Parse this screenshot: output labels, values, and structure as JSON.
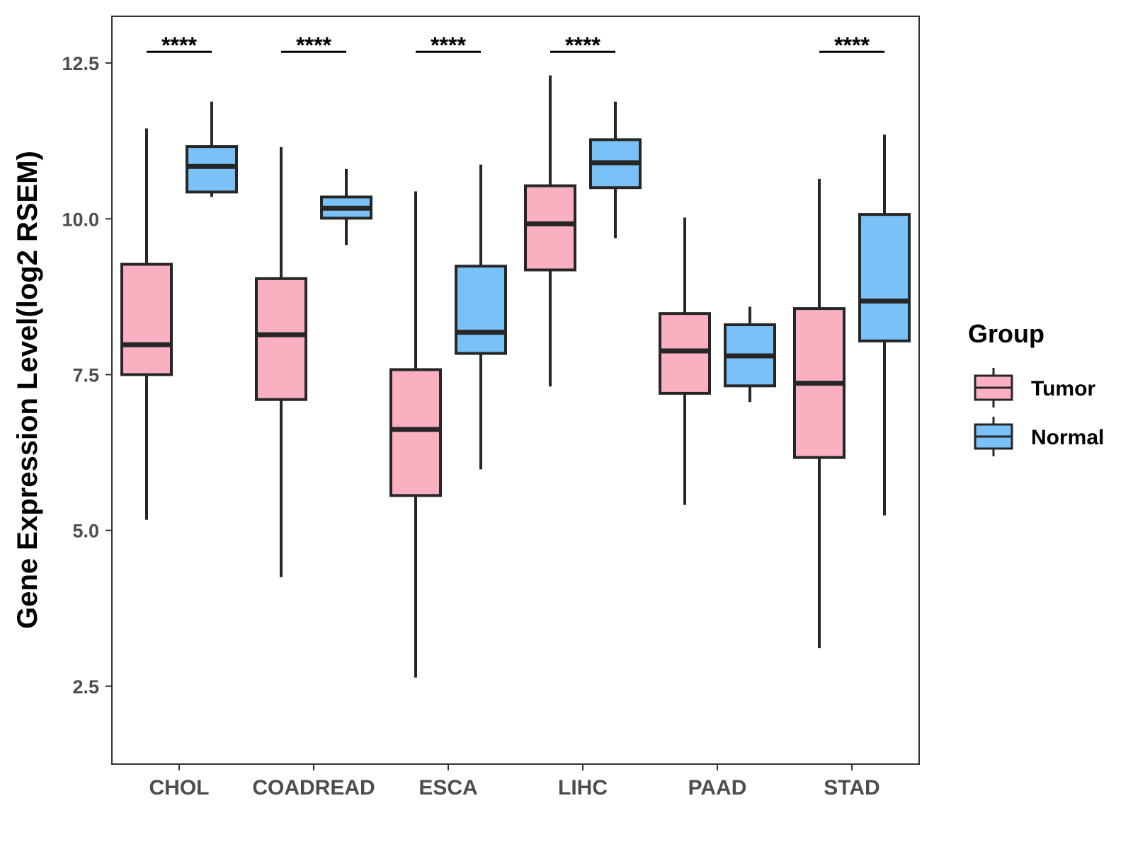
{
  "chart_data": {
    "type": "boxplot",
    "title": "",
    "xlabel": "",
    "ylabel": "Gene Expression Level(log2 RSEM)",
    "ylim": [
      1.25,
      13.25
    ],
    "yticks": [
      2.5,
      5.0,
      7.5,
      10.0,
      12.5
    ],
    "ytick_labels": [
      "2.5",
      "5.0",
      "7.5",
      "10.0",
      "12.5"
    ],
    "categories": [
      "CHOL",
      "COADREAD",
      "ESCA",
      "LIHC",
      "PAAD",
      "STAD"
    ],
    "legend": {
      "title": "Group",
      "position": "right",
      "entries": [
        {
          "name": "Tumor",
          "color": "#fbb0c1"
        },
        {
          "name": "Normal",
          "color": "#79c1f7"
        }
      ]
    },
    "series": [
      {
        "name": "Tumor",
        "color": "#fbb0c1",
        "boxes": [
          {
            "category": "CHOL",
            "whisker_low": 5.17,
            "q1": 7.5,
            "median": 7.98,
            "q3": 9.27,
            "whisker_high": 11.45
          },
          {
            "category": "COADREAD",
            "whisker_low": 4.25,
            "q1": 7.1,
            "median": 8.14,
            "q3": 9.04,
            "whisker_high": 11.15
          },
          {
            "category": "ESCA",
            "whisker_low": 2.64,
            "q1": 5.56,
            "median": 6.62,
            "q3": 7.58,
            "whisker_high": 10.44
          },
          {
            "category": "LIHC",
            "whisker_low": 7.31,
            "q1": 9.18,
            "median": 9.92,
            "q3": 10.53,
            "whisker_high": 12.3
          },
          {
            "category": "PAAD",
            "whisker_low": 5.41,
            "q1": 7.2,
            "median": 7.88,
            "q3": 8.48,
            "whisker_high": 10.02
          },
          {
            "category": "STAD",
            "whisker_low": 3.11,
            "q1": 6.17,
            "median": 7.36,
            "q3": 8.56,
            "whisker_high": 10.64
          }
        ]
      },
      {
        "name": "Normal",
        "color": "#79c1f7",
        "boxes": [
          {
            "category": "CHOL",
            "whisker_low": 10.35,
            "q1": 10.43,
            "median": 10.84,
            "q3": 11.16,
            "whisker_high": 11.88
          },
          {
            "category": "COADREAD",
            "whisker_low": 9.58,
            "q1": 10.01,
            "median": 10.17,
            "q3": 10.35,
            "whisker_high": 10.8
          },
          {
            "category": "ESCA",
            "whisker_low": 5.98,
            "q1": 7.84,
            "median": 8.18,
            "q3": 9.24,
            "whisker_high": 10.87
          },
          {
            "category": "LIHC",
            "whisker_low": 9.69,
            "q1": 10.5,
            "median": 10.9,
            "q3": 11.27,
            "whisker_high": 11.88
          },
          {
            "category": "PAAD",
            "whisker_low": 7.06,
            "q1": 7.32,
            "median": 7.8,
            "q3": 8.3,
            "whisker_high": 8.59
          },
          {
            "category": "STAD",
            "whisker_low": 5.24,
            "q1": 8.04,
            "median": 8.68,
            "q3": 10.07,
            "whisker_high": 11.35
          }
        ]
      }
    ],
    "annotations": [
      {
        "category": "CHOL",
        "text": "****",
        "y": 12.68
      },
      {
        "category": "COADREAD",
        "text": "****",
        "y": 12.68
      },
      {
        "category": "ESCA",
        "text": "****",
        "y": 12.68
      },
      {
        "category": "LIHC",
        "text": "****",
        "y": 12.68
      },
      {
        "category": "STAD",
        "text": "****",
        "y": 12.68
      }
    ]
  }
}
